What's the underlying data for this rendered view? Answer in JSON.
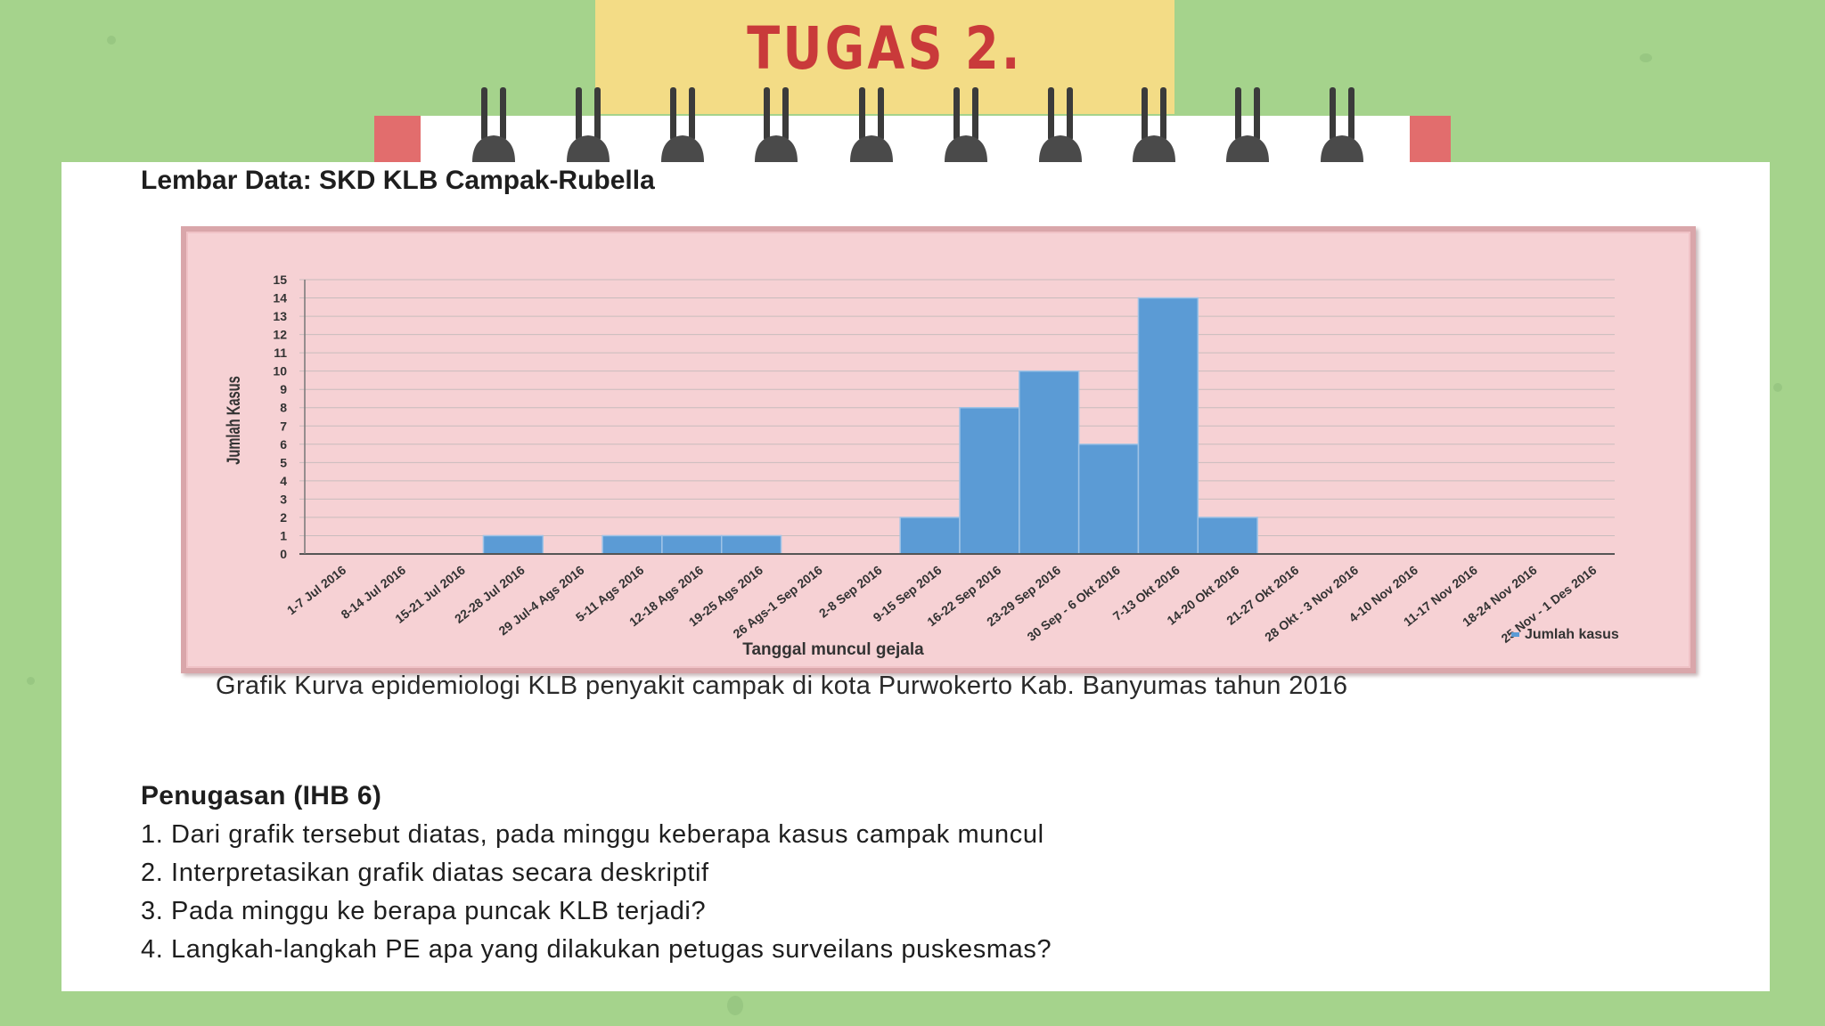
{
  "title": "TUGAS 2.",
  "sheet_title": "Lembar Data: SKD KLB Campak-Rubella",
  "caption": "Grafik Kurva epidemiologi KLB penyakit campak di kota Purwokerto Kab. Banyumas tahun 2016",
  "tasks": {
    "heading": "Penugasan (IHB 6)",
    "items": [
      "1. Dari grafik tersebut diatas, pada minggu keberapa kasus campak muncul",
      "2. Interpretasikan grafik diatas secara deskriptif",
      "3. Pada minggu ke berapa puncak KLB terjadi?",
      "4. Langkah-langkah PE apa yang dilakukan petugas surveilans puskesmas?"
    ]
  },
  "colors": {
    "background": "#a5d38c",
    "title_tab": "#f3dc86",
    "title_text": "#c93a3a",
    "chart_background": "#f6d1d4",
    "bar": "#5b9bd5"
  },
  "chart_data": {
    "type": "bar",
    "xlabel": "Tanggal muncul gejala",
    "ylabel": "Jumlah Kasus",
    "ylim": [
      0,
      15
    ],
    "grid": true,
    "legend_position": "bottom-right",
    "categories": [
      "1-7 Jul 2016",
      "8-14 Jul 2016",
      "15-21 Jul 2016",
      "22-28 Jul 2016",
      "29 Jul-4 Ags 2016",
      "5-11 Ags 2016",
      "12-18 Ags 2016",
      "19-25 Ags 2016",
      "26 Ags-1 Sep 2016",
      "2-8 Sep 2016",
      "9-15 Sep 2016",
      "16-22 Sep 2016",
      "23-29 Sep 2016",
      "30 Sep - 6 Okt 2016",
      "7-13 Okt 2016",
      "14-20 Okt 2016",
      "21-27 Okt 2016",
      "28 Okt - 3 Nov 2016",
      "4-10 Nov 2016",
      "11-17 Nov 2016",
      "18-24 Nov 2016",
      "25 Nov - 1 Des 2016"
    ],
    "series": [
      {
        "name": "Jumlah kasus",
        "values": [
          0,
          0,
          0,
          1,
          0,
          1,
          1,
          1,
          0,
          0,
          2,
          8,
          10,
          6,
          14,
          2,
          0,
          0,
          0,
          0,
          0,
          0
        ]
      }
    ],
    "yticks": [
      "0",
      "1",
      "2",
      "3",
      "4",
      "5",
      "6",
      "7",
      "8",
      "9",
      "10",
      "11",
      "12",
      "13",
      "14",
      "15"
    ]
  }
}
